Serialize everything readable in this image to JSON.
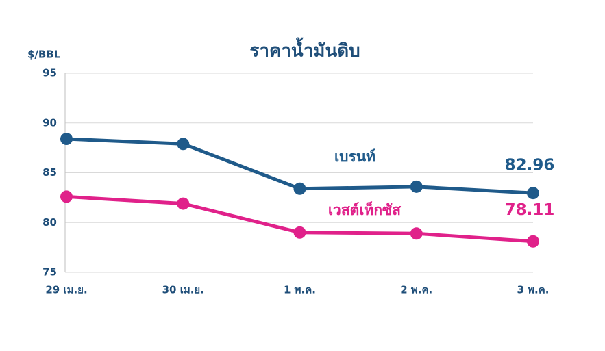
{
  "chart_data": {
    "type": "line",
    "title": "ราคาน้ำมันดิบ",
    "y_label": "$/BBL",
    "categories": [
      "29 เม.ย.",
      "30 เม.ย.",
      "1 พ.ค.",
      "2 พ.ค.",
      "3 พ.ค."
    ],
    "series": [
      {
        "name": "เบรนท์",
        "color": "#1f5a8a",
        "values": [
          88.4,
          87.9,
          83.4,
          83.6,
          82.96
        ]
      },
      {
        "name": "เวสต์เท็กซัส",
        "color": "#e0218a",
        "values": [
          82.6,
          81.9,
          79.0,
          78.9,
          78.11
        ]
      }
    ],
    "ylim": [
      75,
      95
    ],
    "yticks": [
      75,
      80,
      85,
      90,
      95
    ],
    "grid": true,
    "label_last": true
  }
}
